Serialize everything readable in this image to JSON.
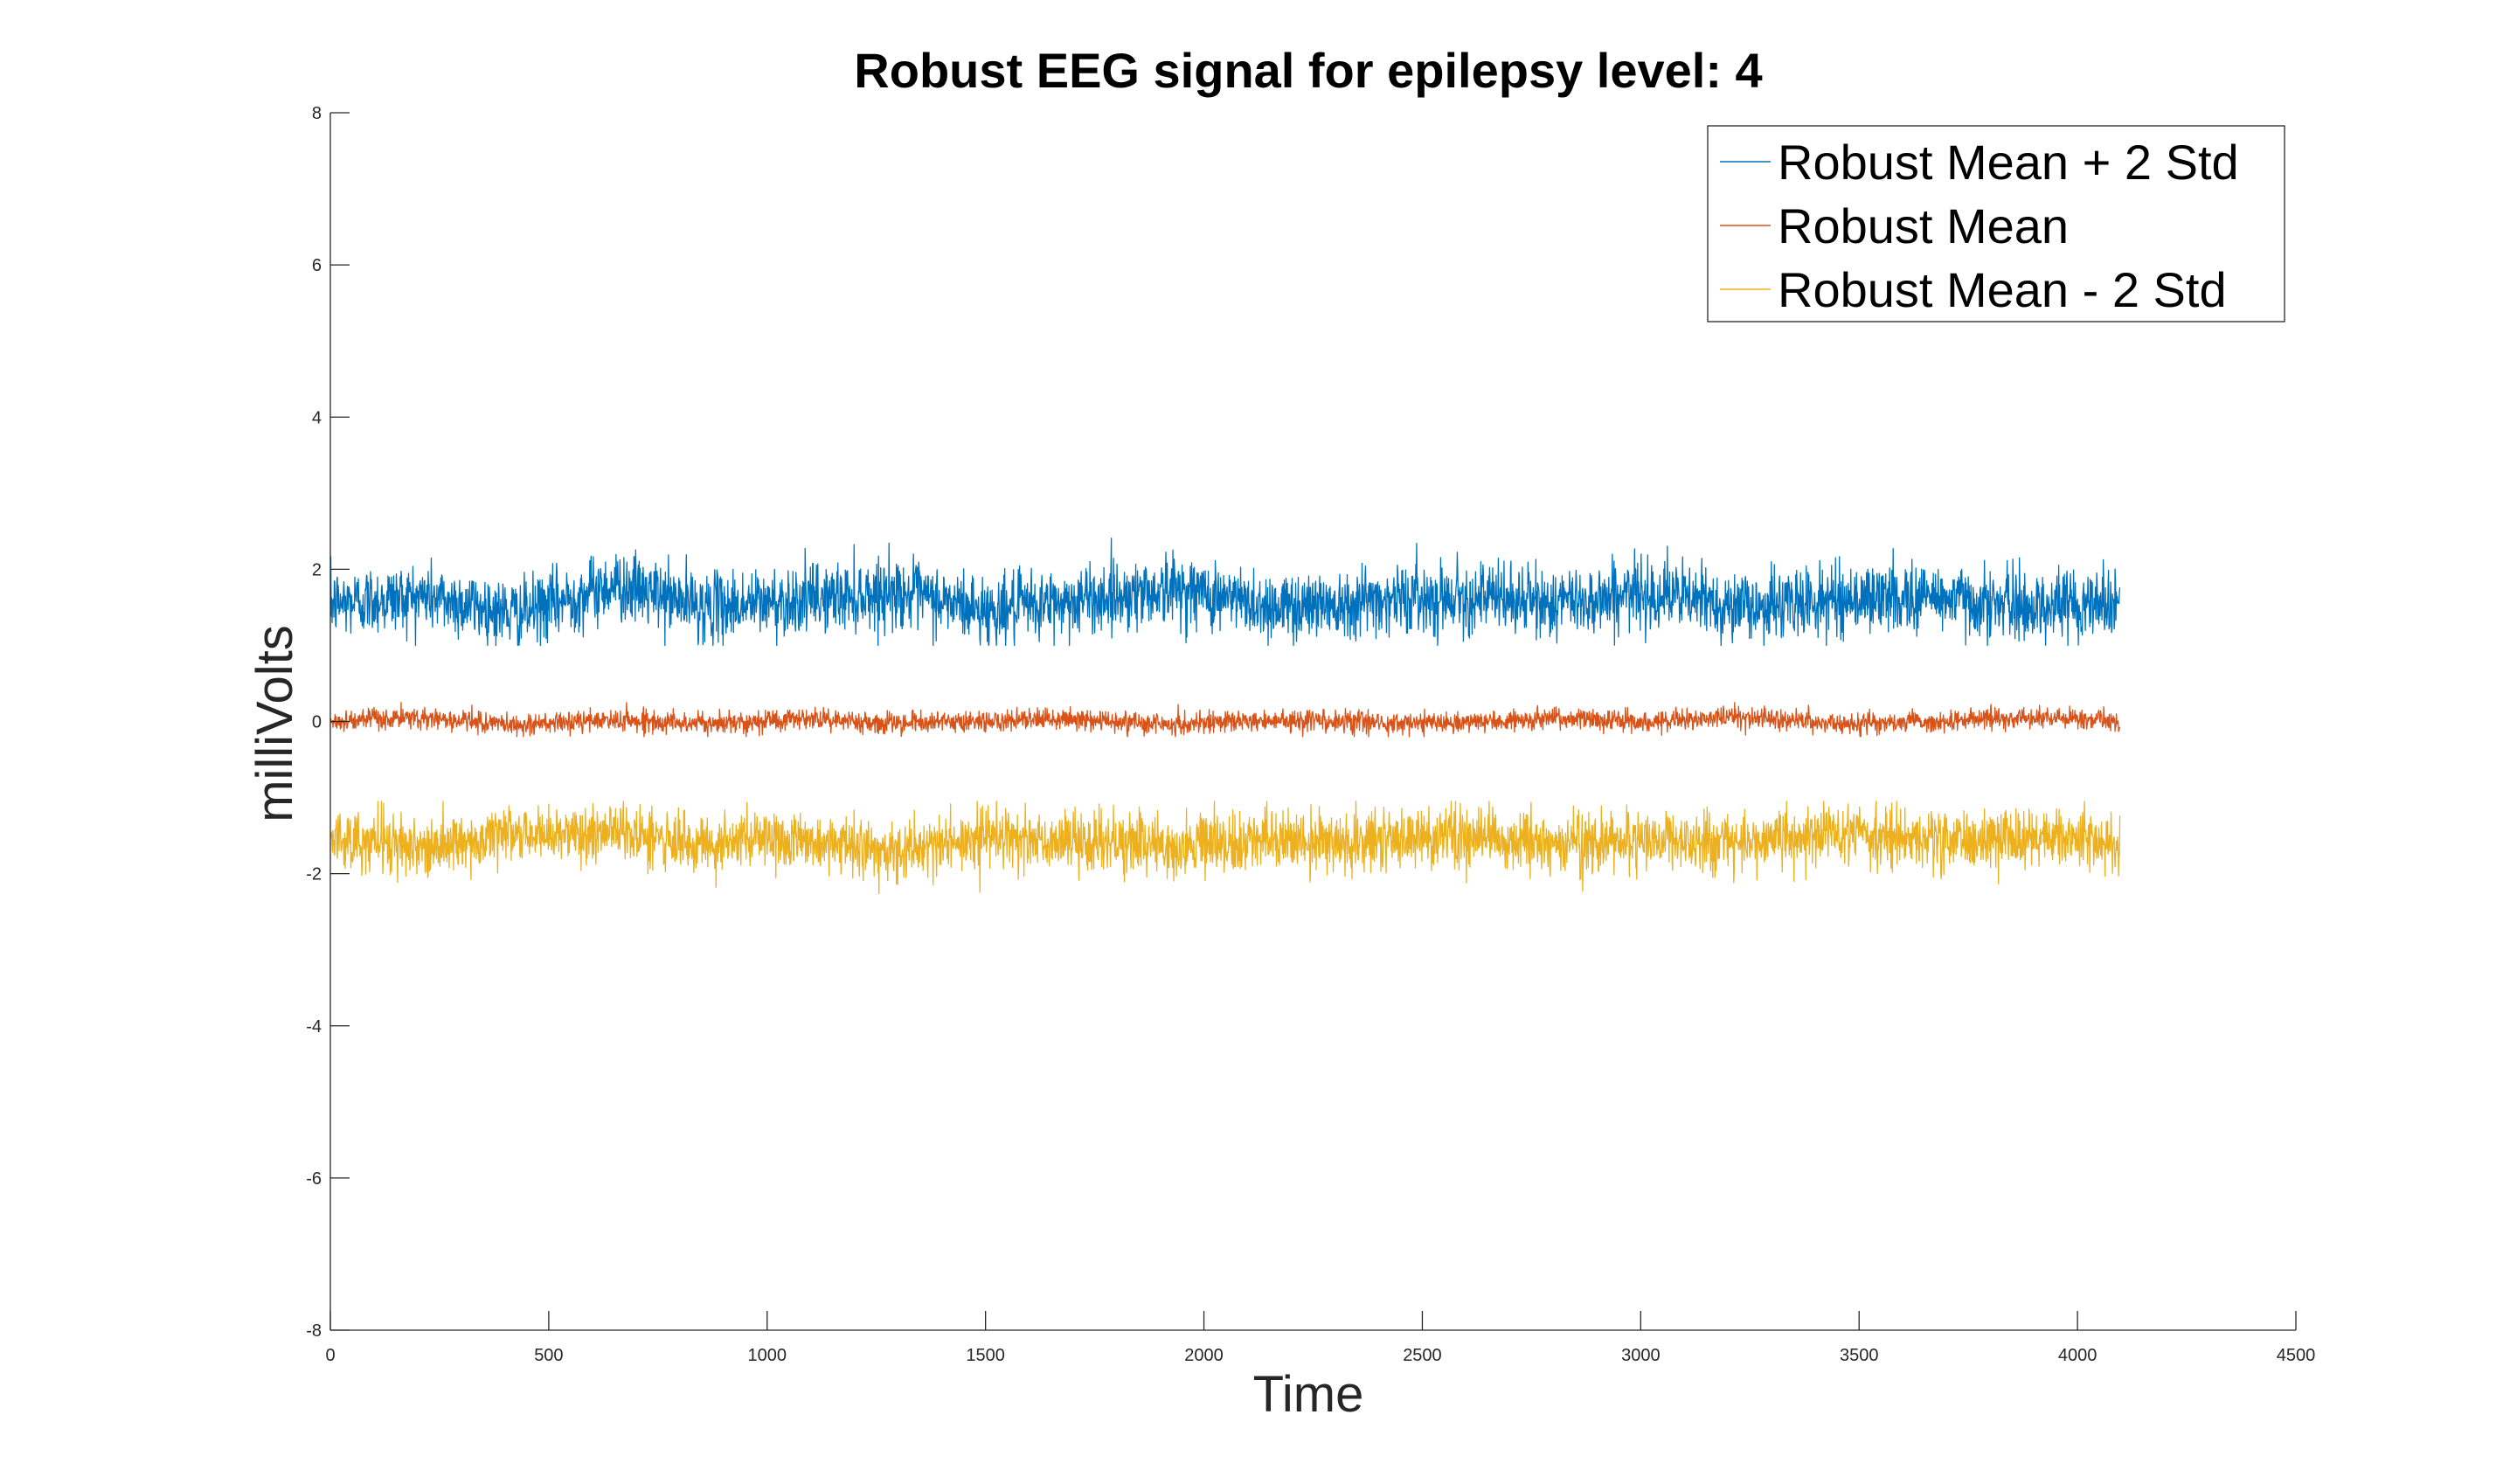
{
  "chart_data": {
    "type": "line",
    "title": "Robust EEG signal for epilepsy level: 4",
    "xlabel": "Time",
    "ylabel": "milliVolts",
    "xlim": [
      0,
      4500
    ],
    "ylim": [
      -8,
      8
    ],
    "xticks": [
      0,
      500,
      1000,
      1500,
      2000,
      2500,
      3000,
      3500,
      4000,
      4500
    ],
    "yticks": [
      -8,
      -6,
      -4,
      -2,
      0,
      2,
      4,
      6,
      8
    ],
    "grid": false,
    "legend_position": "top-right",
    "n_samples": 4097,
    "series": [
      {
        "name": "Robust Mean + 2 Std",
        "color": "#0072BD",
        "center": 1.6,
        "min": 1.0,
        "max": 2.45,
        "values": [
          1.55,
          1.65,
          1.4,
          1.8,
          1.5,
          1.6,
          1.7,
          1.45,
          1.6,
          1.75,
          1.5,
          1.6,
          1.65,
          1.55,
          1.7,
          1.5,
          1.6,
          1.65,
          1.5,
          1.6
        ]
      },
      {
        "name": "Robust Mean",
        "color": "#D95319",
        "center": 0.0,
        "min": -0.2,
        "max": 0.25,
        "values": [
          0.0,
          0.05,
          -0.05,
          0.02,
          -0.03,
          0.04,
          -0.02,
          0.0,
          0.03,
          -0.04,
          0.02,
          0.0,
          -0.03,
          0.04,
          0.0,
          0.06,
          -0.02,
          0.0,
          0.05,
          0.0
        ]
      },
      {
        "name": "Robust Mean - 2 Std",
        "color": "#EDB120",
        "center": -1.6,
        "min": -2.3,
        "max": -1.05,
        "values": [
          -1.55,
          -1.65,
          -1.5,
          -1.45,
          -1.6,
          -1.55,
          -1.7,
          -1.5,
          -1.6,
          -1.65,
          -1.55,
          -1.6,
          -1.5,
          -1.65,
          -1.55,
          -1.6,
          -1.45,
          -1.6,
          -1.55,
          -1.6
        ]
      }
    ]
  }
}
